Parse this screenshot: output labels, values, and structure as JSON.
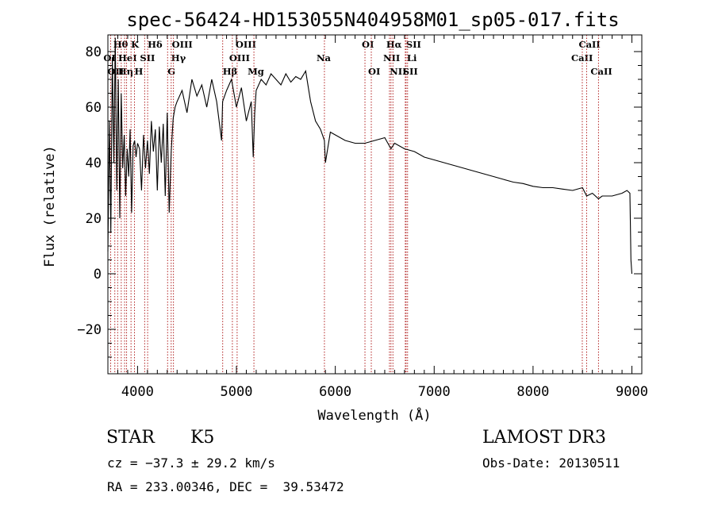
{
  "chart_data": {
    "type": "line",
    "title": "spec-56424-HD153055N404958M01_sp05-017.fits",
    "xlabel": "Wavelength (Å)",
    "ylabel": "Flux (relative)",
    "xlim": [
      3700,
      9100
    ],
    "ylim": [
      -36,
      86
    ],
    "x_ticks": [
      {
        "v": 4000,
        "label": "4000"
      },
      {
        "v": 5000,
        "label": "5000"
      },
      {
        "v": 6000,
        "label": "6000"
      },
      {
        "v": 7000,
        "label": "7000"
      },
      {
        "v": 8000,
        "label": "8000"
      },
      {
        "v": 9000,
        "label": "9000"
      }
    ],
    "y_ticks": [
      {
        "v": -20,
        "label": "−20"
      },
      {
        "v": 0,
        "label": "0"
      },
      {
        "v": 20,
        "label": "20"
      },
      {
        "v": 40,
        "label": "40"
      },
      {
        "v": 60,
        "label": "60"
      },
      {
        "v": 80,
        "label": "80"
      }
    ],
    "series": [
      {
        "name": "flux",
        "x": [
          3700,
          3715,
          3730,
          3745,
          3760,
          3775,
          3790,
          3805,
          3820,
          3835,
          3850,
          3865,
          3880,
          3895,
          3910,
          3925,
          3940,
          3955,
          3970,
          3985,
          4000,
          4020,
          4040,
          4060,
          4080,
          4100,
          4120,
          4140,
          4160,
          4180,
          4200,
          4220,
          4240,
          4260,
          4280,
          4300,
          4320,
          4340,
          4360,
          4380,
          4400,
          4450,
          4500,
          4550,
          4600,
          4650,
          4700,
          4750,
          4800,
          4850,
          4860,
          4900,
          4950,
          5000,
          5050,
          5100,
          5150,
          5170,
          5185,
          5200,
          5250,
          5300,
          5350,
          5400,
          5450,
          5500,
          5550,
          5600,
          5650,
          5700,
          5750,
          5800,
          5850,
          5890,
          5900,
          5950,
          6000,
          6100,
          6200,
          6300,
          6400,
          6500,
          6563,
          6600,
          6700,
          6800,
          6900,
          7000,
          7100,
          7200,
          7300,
          7400,
          7500,
          7600,
          7700,
          7800,
          7900,
          8000,
          8100,
          8200,
          8300,
          8400,
          8500,
          8542,
          8600,
          8662,
          8700,
          8800,
          8900,
          8950,
          8980,
          8990,
          9000
        ],
        "y": [
          8,
          55,
          15,
          78,
          40,
          85,
          30,
          70,
          20,
          65,
          38,
          50,
          28,
          45,
          35,
          52,
          22,
          46,
          48,
          42,
          47,
          45,
          30,
          50,
          38,
          48,
          36,
          55,
          44,
          52,
          30,
          53,
          40,
          54,
          28,
          58,
          22,
          44,
          56,
          60,
          62,
          66,
          58,
          70,
          64,
          68,
          60,
          70,
          62,
          48,
          62,
          66,
          70,
          60,
          67,
          55,
          62,
          42,
          58,
          66,
          70,
          68,
          72,
          70,
          68,
          72,
          69,
          71,
          70,
          73,
          62,
          55,
          52,
          48,
          40,
          51,
          50,
          48,
          47,
          47,
          48,
          49,
          45,
          47,
          45,
          44,
          42,
          41,
          40,
          39,
          38,
          37,
          36,
          35,
          34,
          33,
          32.5,
          31.5,
          31,
          31,
          30.5,
          30,
          31,
          28,
          29,
          27,
          28,
          28,
          29,
          30,
          29,
          5,
          0
        ]
      }
    ],
    "lines": [
      {
        "x": 3728,
        "row": 2,
        "label": "OII",
        "dx": -4
      },
      {
        "x": 3770,
        "row": 0,
        "label": "Hθ",
        "dx": -2
      },
      {
        "x": 3799,
        "row": 1,
        "label": "OI",
        "dx": -18
      },
      {
        "x": 3835,
        "row": 2,
        "label": "Hη",
        "dx": -4
      },
      {
        "x": 3869,
        "row": 1,
        "label": "HeI",
        "dx": -8
      },
      {
        "x": 3889,
        "row": 1,
        "label": "",
        "dx": 0
      },
      {
        "x": 3934,
        "row": 0,
        "label": "K",
        "dx": 0
      },
      {
        "x": 3969,
        "row": 2,
        "label": "H",
        "dx": 0
      },
      {
        "x": 4072,
        "row": 1,
        "label": "SII",
        "dx": -6
      },
      {
        "x": 4102,
        "row": 0,
        "label": "Hδ",
        "dx": 0
      },
      {
        "x": 4304,
        "row": 2,
        "label": "G",
        "dx": 0
      },
      {
        "x": 4340,
        "row": 1,
        "label": "Hγ",
        "dx": 0
      },
      {
        "x": 4363,
        "row": 0,
        "label": "OIII",
        "dx": -2
      },
      {
        "x": 4861,
        "row": 2,
        "label": "Hβ",
        "dx": 0
      },
      {
        "x": 4959,
        "row": 1,
        "label": "OIII",
        "dx": -4
      },
      {
        "x": 5007,
        "row": 0,
        "label": "OIII",
        "dx": -2
      },
      {
        "x": 5177,
        "row": 2,
        "label": "Mg",
        "dx": -8
      },
      {
        "x": 5890,
        "row": 1,
        "label": "Na",
        "dx": -10
      },
      {
        "x": 6300,
        "row": 0,
        "label": "OI",
        "dx": -4
      },
      {
        "x": 6364,
        "row": 2,
        "label": "OI",
        "dx": -4
      },
      {
        "x": 6548,
        "row": 1,
        "label": "NII",
        "dx": -8
      },
      {
        "x": 6563,
        "row": 0,
        "label": "Hα",
        "dx": -6
      },
      {
        "x": 6583,
        "row": 2,
        "label": "NII",
        "dx": -4
      },
      {
        "x": 6708,
        "row": 1,
        "label": "Li",
        "dx": 2
      },
      {
        "x": 6716,
        "row": 0,
        "label": "SII",
        "dx": 0
      },
      {
        "x": 6731,
        "row": 2,
        "label": "SII",
        "dx": -6
      },
      {
        "x": 8498,
        "row": 1,
        "label": "CaII",
        "dx": -14
      },
      {
        "x": 8542,
        "row": 0,
        "label": "CaII",
        "dx": -10
      },
      {
        "x": 8662,
        "row": 2,
        "label": "CaII",
        "dx": -10
      }
    ]
  },
  "footer": {
    "object_class": "STAR",
    "subclass": "K5",
    "survey": "LAMOST DR3",
    "cz": "cz = −37.3 ± 29.2 km/s",
    "obs_date": "Obs-Date: 20130511",
    "coords": "RA = 233.00346, DEC =  39.53472"
  }
}
